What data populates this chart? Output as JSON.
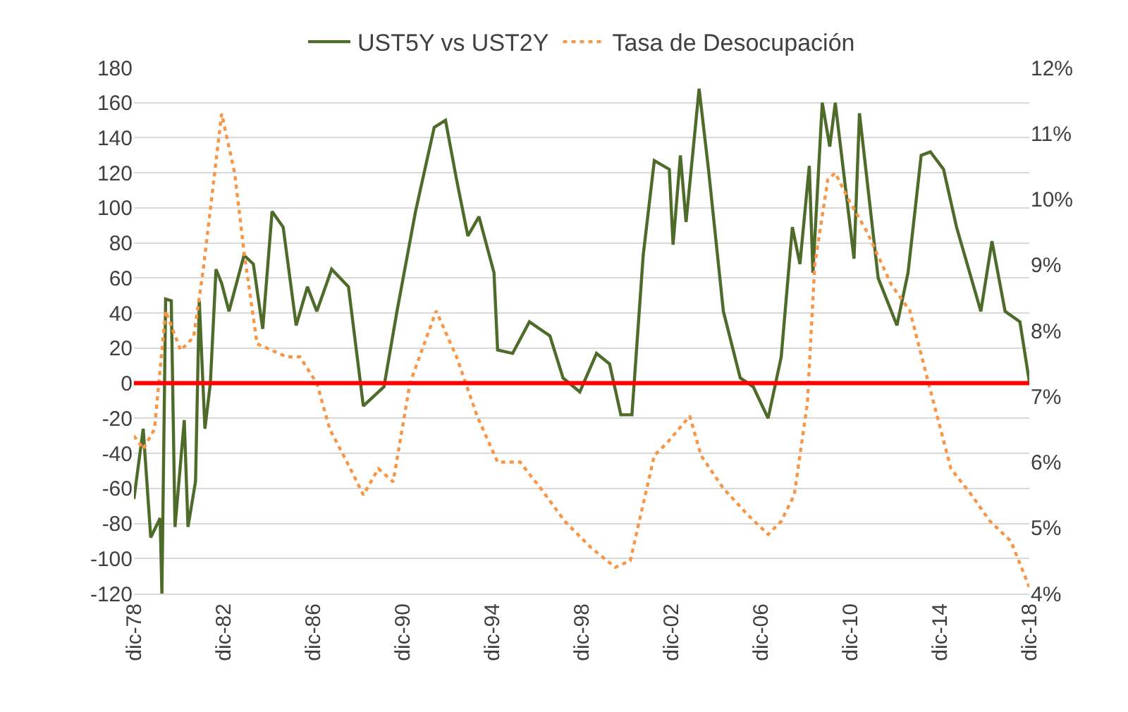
{
  "chart_data": {
    "type": "line",
    "legend": "top",
    "grid": "y",
    "marker": "none",
    "xlim": [
      "1978-12",
      "2018-12"
    ],
    "xticks": [
      {
        "value": "1978-12",
        "label": "dic-78"
      },
      {
        "value": "1982-12",
        "label": "dic-82"
      },
      {
        "value": "1986-12",
        "label": "dic-86"
      },
      {
        "value": "1990-12",
        "label": "dic-90"
      },
      {
        "value": "1994-12",
        "label": "dic-94"
      },
      {
        "value": "1998-12",
        "label": "dic-98"
      },
      {
        "value": "2002-12",
        "label": "dic-02"
      },
      {
        "value": "2006-12",
        "label": "dic-06"
      },
      {
        "value": "2010-12",
        "label": "dic-10"
      },
      {
        "value": "2014-12",
        "label": "dic-14"
      },
      {
        "value": "2018-12",
        "label": "dic-18"
      }
    ],
    "ylim": [
      -120,
      180
    ],
    "yticks": [
      -120,
      -100,
      -80,
      -60,
      -40,
      -20,
      0,
      20,
      40,
      60,
      80,
      100,
      120,
      140,
      160,
      180
    ],
    "y2lim": [
      4,
      12
    ],
    "y2ticks": [
      {
        "value": 4,
        "label": "4%"
      },
      {
        "value": 5,
        "label": "5%"
      },
      {
        "value": 6,
        "label": "6%"
      },
      {
        "value": 7,
        "label": "7%"
      },
      {
        "value": 8,
        "label": "8%"
      },
      {
        "value": 9,
        "label": "9%"
      },
      {
        "value": 10,
        "label": "10%"
      },
      {
        "value": 11,
        "label": "11%"
      },
      {
        "value": 12,
        "label": "12%"
      }
    ],
    "ref_lines": [
      {
        "axis": "y",
        "value": 0,
        "color": "#ff0000",
        "line_style": "solid"
      }
    ],
    "series": [
      {
        "name": "UST5Y vs UST2Y",
        "color": "#4f6b2a",
        "line_style": "solid",
        "x": [
          "1978-12",
          "1979-05",
          "1979-09",
          "1980-02",
          "1980-03",
          "1980-05",
          "1980-08",
          "1980-10",
          "1981-03",
          "1981-05",
          "1981-09",
          "1981-11",
          "1982-02",
          "1982-05",
          "1982-08",
          "1982-11",
          "1983-03",
          "1983-11",
          "1984-04",
          "1984-09",
          "1985-02",
          "1985-08",
          "1986-03",
          "1986-09",
          "1987-02",
          "1987-10",
          "1988-07",
          "1989-03",
          "1990-02",
          "1990-09",
          "1991-07",
          "1992-05",
          "1992-11",
          "1993-05",
          "1993-11",
          "1994-05",
          "1995-01",
          "1995-03",
          "1995-11",
          "1996-08",
          "1997-07",
          "1998-02",
          "1998-11",
          "1999-08",
          "2000-03",
          "2000-09",
          "2001-03",
          "2001-09",
          "2002-03",
          "2002-11",
          "2003-01",
          "2003-05",
          "2003-08",
          "2004-03",
          "2004-08",
          "2005-04",
          "2006-01",
          "2006-08",
          "2007-04",
          "2007-11",
          "2008-05",
          "2008-09",
          "2009-02",
          "2009-04",
          "2009-09",
          "2010-01",
          "2010-04",
          "2011-02",
          "2011-05",
          "2012-03",
          "2013-01",
          "2013-07",
          "2014-02",
          "2014-07",
          "2015-02",
          "2015-09",
          "2016-10",
          "2017-04",
          "2017-11",
          "2018-07",
          "2018-12"
        ],
        "values": [
          -66,
          -26,
          -88,
          -77,
          -120,
          48,
          47,
          -82,
          -21,
          -82,
          -56,
          47,
          -26,
          0,
          65,
          57,
          41,
          73,
          68,
          31,
          98,
          89,
          33,
          55,
          41,
          65,
          55,
          -13,
          -2,
          41,
          98,
          146,
          150,
          116,
          84,
          95,
          63,
          19,
          17,
          35,
          27,
          3,
          -5,
          17,
          11,
          -18,
          -18,
          73,
          127,
          122,
          79,
          130,
          92,
          168,
          122,
          41,
          3,
          -2,
          -20,
          15,
          89,
          68,
          124,
          63,
          160,
          135,
          160,
          71,
          154,
          60,
          33,
          63,
          130,
          132,
          122,
          89,
          41,
          81,
          41,
          35,
          1
        ]
      },
      {
        "name": "Tasa de Desocupación",
        "color": "#f79646",
        "line_style": "dotted",
        "axis": "y2",
        "x": [
          "1978-12",
          "1979-05",
          "1979-11",
          "1980-05",
          "1981-01",
          "1981-08",
          "1982-01",
          "1982-11",
          "1983-06",
          "1983-11",
          "1984-06",
          "1985-10",
          "1986-05",
          "1987-02",
          "1987-09",
          "1988-08",
          "1989-03",
          "1989-11",
          "1990-07",
          "1991-04",
          "1992-06",
          "1993-05",
          "1994-04",
          "1995-03",
          "1996-03",
          "1997-02",
          "1998-03",
          "1999-05",
          "2000-06",
          "2001-02",
          "2002-03",
          "2002-10",
          "2003-10",
          "2004-04",
          "2005-04",
          "2006-05",
          "2007-04",
          "2007-11",
          "2008-06",
          "2009-01",
          "2009-05",
          "2009-12",
          "2010-04",
          "2010-11",
          "2011-09",
          "2012-10",
          "2013-08",
          "2014-06",
          "2015-06",
          "2016-05",
          "2017-03",
          "2018-02",
          "2018-12"
        ],
        "values": [
          6.4,
          6.2,
          6.5,
          8.3,
          7.7,
          7.9,
          8.9,
          11.3,
          10.4,
          9.2,
          7.8,
          7.6,
          7.6,
          7.2,
          6.5,
          5.9,
          5.5,
          5.9,
          5.7,
          7.2,
          8.3,
          7.6,
          6.7,
          6.0,
          6.0,
          5.6,
          5.1,
          4.7,
          4.4,
          4.5,
          6.1,
          6.3,
          6.7,
          6.1,
          5.6,
          5.2,
          4.9,
          5.1,
          5.5,
          6.9,
          9.0,
          10.3,
          10.4,
          10.0,
          9.5,
          8.7,
          8.3,
          7.2,
          5.9,
          5.5,
          5.1,
          4.8,
          4.1
        ]
      }
    ]
  }
}
